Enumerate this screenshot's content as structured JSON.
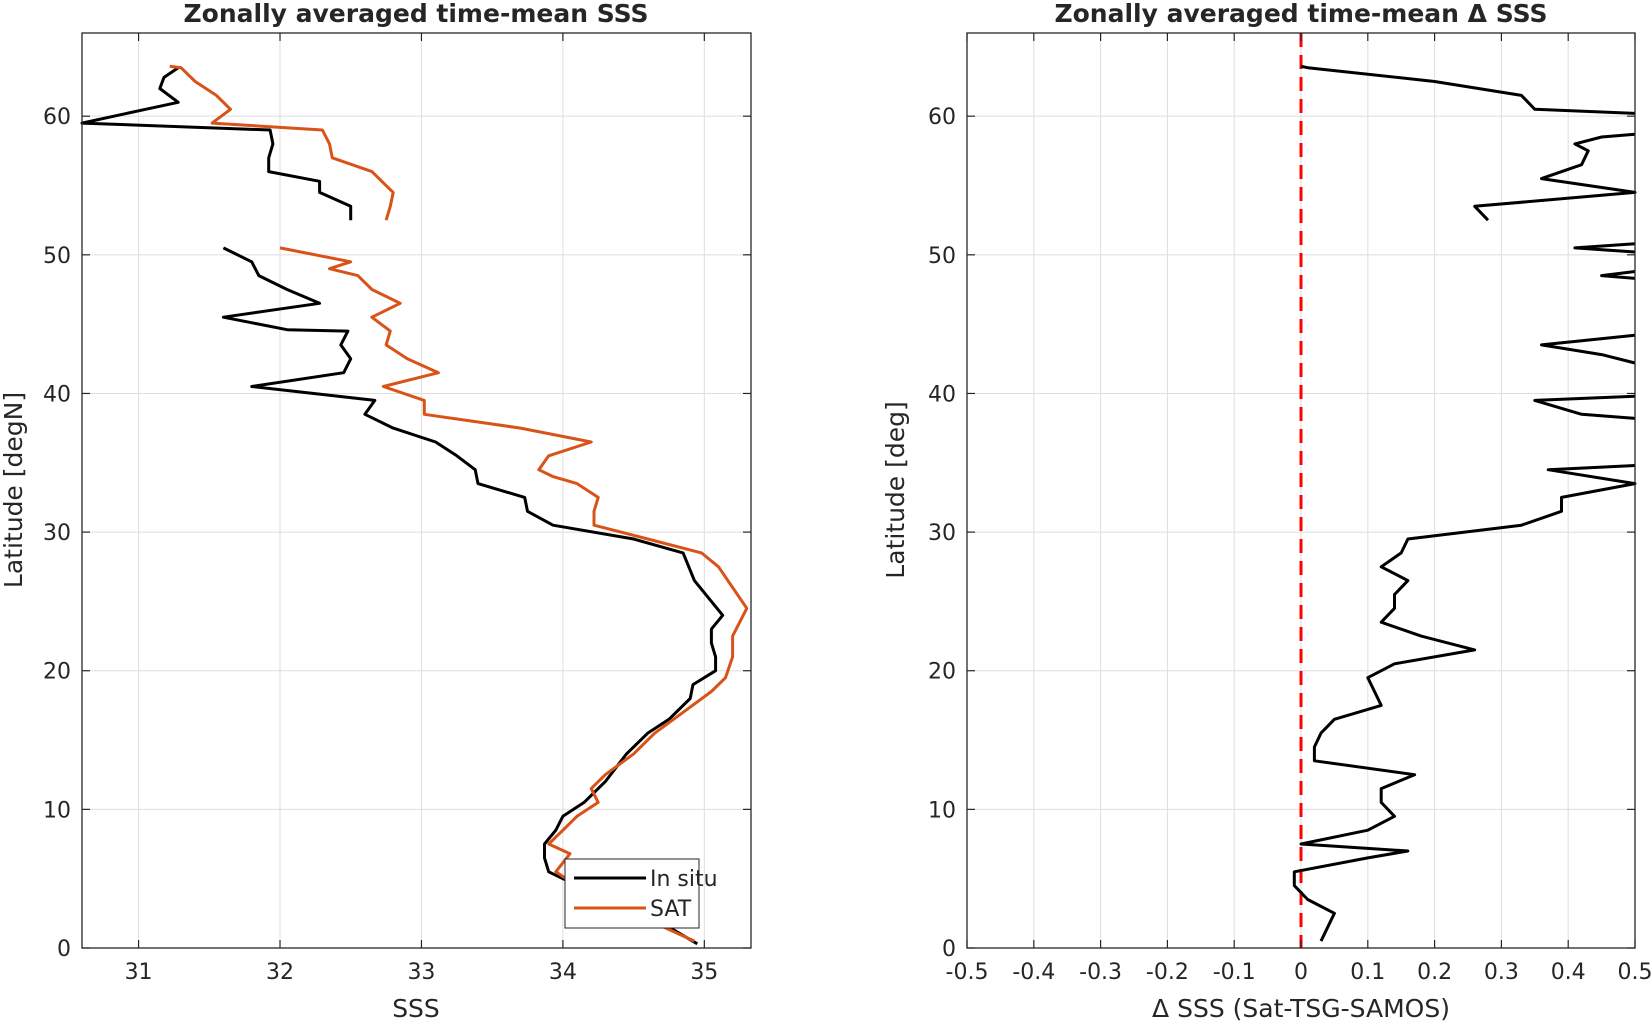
{
  "chart_data": [
    {
      "type": "line",
      "title": "Zonally averaged time-mean SSS",
      "xlabel": "SSS",
      "ylabel": "Latitude [degN]",
      "xlim": [
        30.6,
        35.33
      ],
      "ylim": [
        0,
        66
      ],
      "xticks": [
        31,
        32,
        33,
        34,
        35
      ],
      "yticks": [
        0,
        10,
        20,
        30,
        40,
        50,
        60
      ],
      "xtick_labels": [
        "31",
        "32",
        "33",
        "34",
        "35"
      ],
      "ytick_labels": [
        "0",
        "10",
        "20",
        "30",
        "40",
        "50",
        "60"
      ],
      "grid": true,
      "legend": {
        "position": "bottom-right",
        "entries": [
          "In situ",
          "SAT"
        ]
      },
      "series": [
        {
          "name": "In situ",
          "color": "#000000",
          "segments": [
            [
              [
                34.95,
                0.3
              ],
              [
                34.5,
                3
              ],
              [
                34.0,
                5
              ],
              [
                33.9,
                5.5
              ],
              [
                33.87,
                6.5
              ],
              [
                33.87,
                7.5
              ],
              [
                33.95,
                8.5
              ],
              [
                34.0,
                9.5
              ],
              [
                34.15,
                10.5
              ],
              [
                34.3,
                12
              ],
              [
                34.45,
                14
              ],
              [
                34.6,
                15.5
              ],
              [
                34.75,
                16.5
              ],
              [
                34.9,
                18
              ],
              [
                34.92,
                19
              ],
              [
                35.08,
                20
              ],
              [
                35.08,
                21
              ],
              [
                35.05,
                22
              ],
              [
                35.05,
                23
              ],
              [
                35.13,
                24
              ],
              [
                35.05,
                25
              ],
              [
                34.93,
                26.5
              ],
              [
                34.85,
                28.5
              ],
              [
                34.5,
                29.5
              ],
              [
                33.93,
                30.5
              ],
              [
                33.75,
                31.5
              ],
              [
                33.73,
                32.5
              ],
              [
                33.4,
                33.5
              ],
              [
                33.38,
                34.5
              ],
              [
                33.25,
                35.5
              ],
              [
                33.1,
                36.5
              ],
              [
                32.8,
                37.5
              ],
              [
                32.6,
                38.5
              ],
              [
                32.67,
                39.5
              ],
              [
                31.8,
                40.5
              ],
              [
                32.45,
                41.5
              ],
              [
                32.5,
                42.5
              ],
              [
                32.43,
                43.5
              ],
              [
                32.48,
                44.5
              ],
              [
                32.05,
                44.6
              ],
              [
                31.6,
                45.5
              ],
              [
                32.28,
                46.5
              ],
              [
                32.05,
                47.5
              ],
              [
                31.85,
                48.5
              ],
              [
                31.8,
                49.5
              ],
              [
                31.6,
                50.5
              ]
            ],
            [
              [
                32.5,
                52.5
              ],
              [
                32.5,
                53.5
              ],
              [
                32.28,
                54.5
              ],
              [
                32.28,
                55.3
              ],
              [
                31.92,
                56
              ],
              [
                31.92,
                57
              ],
              [
                31.95,
                58
              ],
              [
                31.93,
                59
              ],
              [
                30.6,
                59.5
              ],
              [
                31.05,
                60.5
              ],
              [
                31.28,
                61
              ],
              [
                31.15,
                62
              ],
              [
                31.18,
                62.8
              ],
              [
                31.28,
                63.5
              ]
            ]
          ]
        },
        {
          "name": "SAT",
          "color": "#D95319",
          "segments": [
            [
              [
                34.93,
                0.5
              ],
              [
                34.5,
                2.5
              ],
              [
                34.1,
                4.5
              ],
              [
                33.95,
                5.5
              ],
              [
                34.05,
                6.8
              ],
              [
                33.9,
                7.5
              ],
              [
                34.0,
                8.5
              ],
              [
                34.1,
                9.5
              ],
              [
                34.25,
                10.5
              ],
              [
                34.2,
                11.5
              ],
              [
                34.3,
                12.5
              ],
              [
                34.5,
                14
              ],
              [
                34.65,
                15.5
              ],
              [
                34.85,
                17
              ],
              [
                35.05,
                18.5
              ],
              [
                35.15,
                19.5
              ],
              [
                35.2,
                21
              ],
              [
                35.2,
                22.5
              ],
              [
                35.3,
                24.5
              ],
              [
                35.2,
                26
              ],
              [
                35.1,
                27.5
              ],
              [
                34.98,
                28.5
              ],
              [
                34.6,
                29.5
              ],
              [
                34.22,
                30.5
              ],
              [
                34.22,
                31.5
              ],
              [
                34.25,
                32.5
              ],
              [
                34.1,
                33.5
              ],
              [
                33.93,
                34
              ],
              [
                33.83,
                34.5
              ],
              [
                33.9,
                35.5
              ],
              [
                34.2,
                36.5
              ],
              [
                33.7,
                37.5
              ],
              [
                33.02,
                38.5
              ],
              [
                33.02,
                39.5
              ],
              [
                32.73,
                40.5
              ],
              [
                33.12,
                41.5
              ],
              [
                32.9,
                42.5
              ],
              [
                32.75,
                43.5
              ],
              [
                32.78,
                44.5
              ],
              [
                32.65,
                45.5
              ],
              [
                32.85,
                46.5
              ],
              [
                32.65,
                47.5
              ],
              [
                32.55,
                48.5
              ],
              [
                32.35,
                49
              ],
              [
                32.5,
                49.5
              ],
              [
                32.0,
                50.5
              ]
            ],
            [
              [
                32.75,
                52.5
              ],
              [
                32.78,
                53.5
              ],
              [
                32.8,
                54.5
              ],
              [
                32.7,
                55.5
              ],
              [
                32.65,
                56
              ],
              [
                32.37,
                57
              ],
              [
                32.35,
                58
              ],
              [
                32.3,
                59
              ],
              [
                31.52,
                59.5
              ],
              [
                31.65,
                60.5
              ],
              [
                31.55,
                61.5
              ],
              [
                31.4,
                62.5
              ],
              [
                31.3,
                63.5
              ],
              [
                31.22,
                63.6
              ]
            ]
          ]
        }
      ]
    },
    {
      "type": "line",
      "title": "Zonally averaged time-mean Δ SSS",
      "xlabel": "Δ SSS (Sat-TSG-SAMOS)",
      "ylabel": "Latitude [deg]",
      "xlim": [
        -0.5,
        0.5
      ],
      "ylim": [
        0,
        66
      ],
      "xticks": [
        -0.5,
        -0.4,
        -0.3,
        -0.2,
        -0.1,
        0,
        0.1,
        0.2,
        0.3,
        0.4,
        0.5
      ],
      "yticks": [
        0,
        10,
        20,
        30,
        40,
        50,
        60
      ],
      "xtick_labels": [
        "-0.5",
        "-0.4",
        "-0.3",
        "-0.2",
        "-0.1",
        "0",
        "0.1",
        "0.2",
        "0.3",
        "0.4",
        "0.5"
      ],
      "ytick_labels": [
        "0",
        "10",
        "20",
        "30",
        "40",
        "50",
        "60"
      ],
      "grid": true,
      "reference_line": {
        "x": 0,
        "color": "#ff0000",
        "style": "dashed"
      },
      "series": [
        {
          "name": "",
          "color": "#000000",
          "segments": [
            [
              [
                0.03,
                0.5
              ],
              [
                0.04,
                1.5
              ],
              [
                0.05,
                2.5
              ],
              [
                0.01,
                3.5
              ],
              [
                -0.01,
                4.5
              ],
              [
                -0.01,
                5.5
              ],
              [
                0.1,
                6.5
              ],
              [
                0.16,
                7
              ],
              [
                0.0,
                7.5
              ],
              [
                0.1,
                8.5
              ],
              [
                0.14,
                9.5
              ],
              [
                0.12,
                10.5
              ],
              [
                0.12,
                11.5
              ],
              [
                0.17,
                12.5
              ],
              [
                0.02,
                13.5
              ],
              [
                0.02,
                14.5
              ],
              [
                0.03,
                15.5
              ],
              [
                0.05,
                16.5
              ],
              [
                0.12,
                17.5
              ],
              [
                0.11,
                18.5
              ],
              [
                0.1,
                19.5
              ],
              [
                0.14,
                20.5
              ],
              [
                0.26,
                21.5
              ],
              [
                0.18,
                22.5
              ],
              [
                0.12,
                23.5
              ],
              [
                0.14,
                24.5
              ],
              [
                0.14,
                25.5
              ],
              [
                0.16,
                26.5
              ],
              [
                0.12,
                27.5
              ],
              [
                0.15,
                28.5
              ],
              [
                0.16,
                29.5
              ],
              [
                0.33,
                30.5
              ],
              [
                0.39,
                31.5
              ],
              [
                0.39,
                32.5
              ],
              [
                0.5,
                33.5
              ],
              [
                0.37,
                34.5
              ],
              [
                0.5,
                34.8
              ]
            ],
            [
              [
                0.5,
                38.2
              ],
              [
                0.42,
                38.5
              ],
              [
                0.35,
                39.5
              ],
              [
                0.5,
                39.8
              ]
            ],
            [
              [
                0.5,
                42.2
              ],
              [
                0.45,
                42.8
              ],
              [
                0.36,
                43.5
              ],
              [
                0.5,
                44.2
              ]
            ],
            [
              [
                0.5,
                48.3
              ],
              [
                0.45,
                48.5
              ],
              [
                0.5,
                48.8
              ]
            ],
            [
              [
                0.5,
                50.2
              ],
              [
                0.41,
                50.5
              ],
              [
                0.5,
                50.8
              ]
            ],
            [
              [
                0.28,
                52.5
              ],
              [
                0.26,
                53.5
              ],
              [
                0.5,
                54.5
              ],
              [
                0.36,
                55.5
              ],
              [
                0.42,
                56.5
              ],
              [
                0.43,
                57.5
              ],
              [
                0.41,
                58
              ],
              [
                0.45,
                58.5
              ],
              [
                0.5,
                58.7
              ]
            ],
            [
              [
                0.5,
                60.2
              ],
              [
                0.35,
                60.5
              ],
              [
                0.33,
                61.5
              ],
              [
                0.2,
                62.5
              ],
              [
                0.01,
                63.5
              ],
              [
                0.0,
                63.6
              ]
            ]
          ]
        }
      ]
    }
  ]
}
